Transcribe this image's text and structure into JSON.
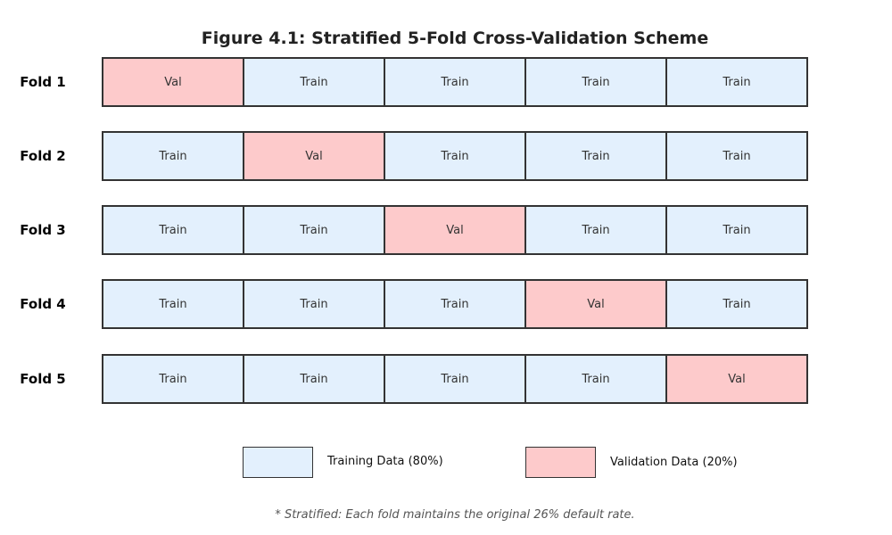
{
  "title": "Figure 4.1: Stratified 5-Fold Cross-Validation Scheme",
  "colors": {
    "train": "#e3f0fd",
    "val": "#fdcacb",
    "border": "#333333"
  },
  "folds": [
    {
      "label": "Fold 1",
      "cells": [
        "Val",
        "Train",
        "Train",
        "Train",
        "Train"
      ]
    },
    {
      "label": "Fold 2",
      "cells": [
        "Train",
        "Val",
        "Train",
        "Train",
        "Train"
      ]
    },
    {
      "label": "Fold 3",
      "cells": [
        "Train",
        "Train",
        "Val",
        "Train",
        "Train"
      ]
    },
    {
      "label": "Fold 4",
      "cells": [
        "Train",
        "Train",
        "Train",
        "Val",
        "Train"
      ]
    },
    {
      "label": "Fold 5",
      "cells": [
        "Train",
        "Train",
        "Train",
        "Train",
        "Val"
      ]
    }
  ],
  "legend": {
    "train_label": "Training Data (80%)",
    "val_label": "Validation Data (20%)"
  },
  "footnote": "* Stratified: Each fold maintains the original 26% default rate."
}
